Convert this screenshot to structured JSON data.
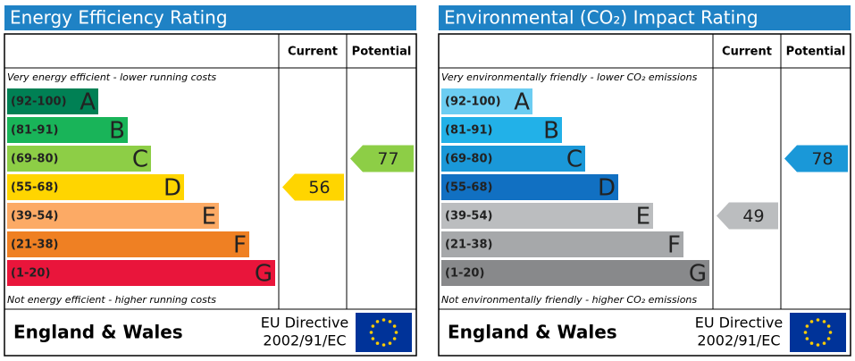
{
  "panels": [
    {
      "title": "Energy Efficiency Rating",
      "columns": [
        "Current",
        "Potential"
      ],
      "top_note": "Very energy efficient - lower running costs",
      "bottom_note": "Not energy efficient - higher running costs",
      "bands": [
        {
          "range": "(92-100)",
          "letter": "A",
          "color": "#008054"
        },
        {
          "range": "(81-91)",
          "letter": "B",
          "color": "#19b459"
        },
        {
          "range": "(69-80)",
          "letter": "C",
          "color": "#8dce46"
        },
        {
          "range": "(55-68)",
          "letter": "D",
          "color": "#ffd500"
        },
        {
          "range": "(39-54)",
          "letter": "E",
          "color": "#fcaa65"
        },
        {
          "range": "(21-38)",
          "letter": "F",
          "color": "#ef8023"
        },
        {
          "range": "(1-20)",
          "letter": "G",
          "color": "#e9153b"
        }
      ],
      "current": 56,
      "potential": 77,
      "footer": {
        "region": "England & Wales",
        "directive": "EU Directive",
        "directive_number": "2002/91/EC"
      }
    },
    {
      "title": "Environmental (CO₂) Impact Rating",
      "columns": [
        "Current",
        "Potential"
      ],
      "top_note": "Very environmentally friendly - lower CO₂ emissions",
      "bottom_note": "Not environmentally friendly - higher CO₂ emissions",
      "bands": [
        {
          "range": "(92-100)",
          "letter": "A",
          "color": "#6ccdf2"
        },
        {
          "range": "(81-91)",
          "letter": "B",
          "color": "#22b1e8"
        },
        {
          "range": "(69-80)",
          "letter": "C",
          "color": "#1a98d8"
        },
        {
          "range": "(55-68)",
          "letter": "D",
          "color": "#1170c2"
        },
        {
          "range": "(39-54)",
          "letter": "E",
          "color": "#bbbdbf"
        },
        {
          "range": "(21-38)",
          "letter": "F",
          "color": "#a6a8aa"
        },
        {
          "range": "(1-20)",
          "letter": "G",
          "color": "#88898b"
        }
      ],
      "current": 49,
      "potential": 78,
      "footer": {
        "region": "England & Wales",
        "directive": "EU Directive",
        "directive_number": "2002/91/EC"
      }
    }
  ]
}
